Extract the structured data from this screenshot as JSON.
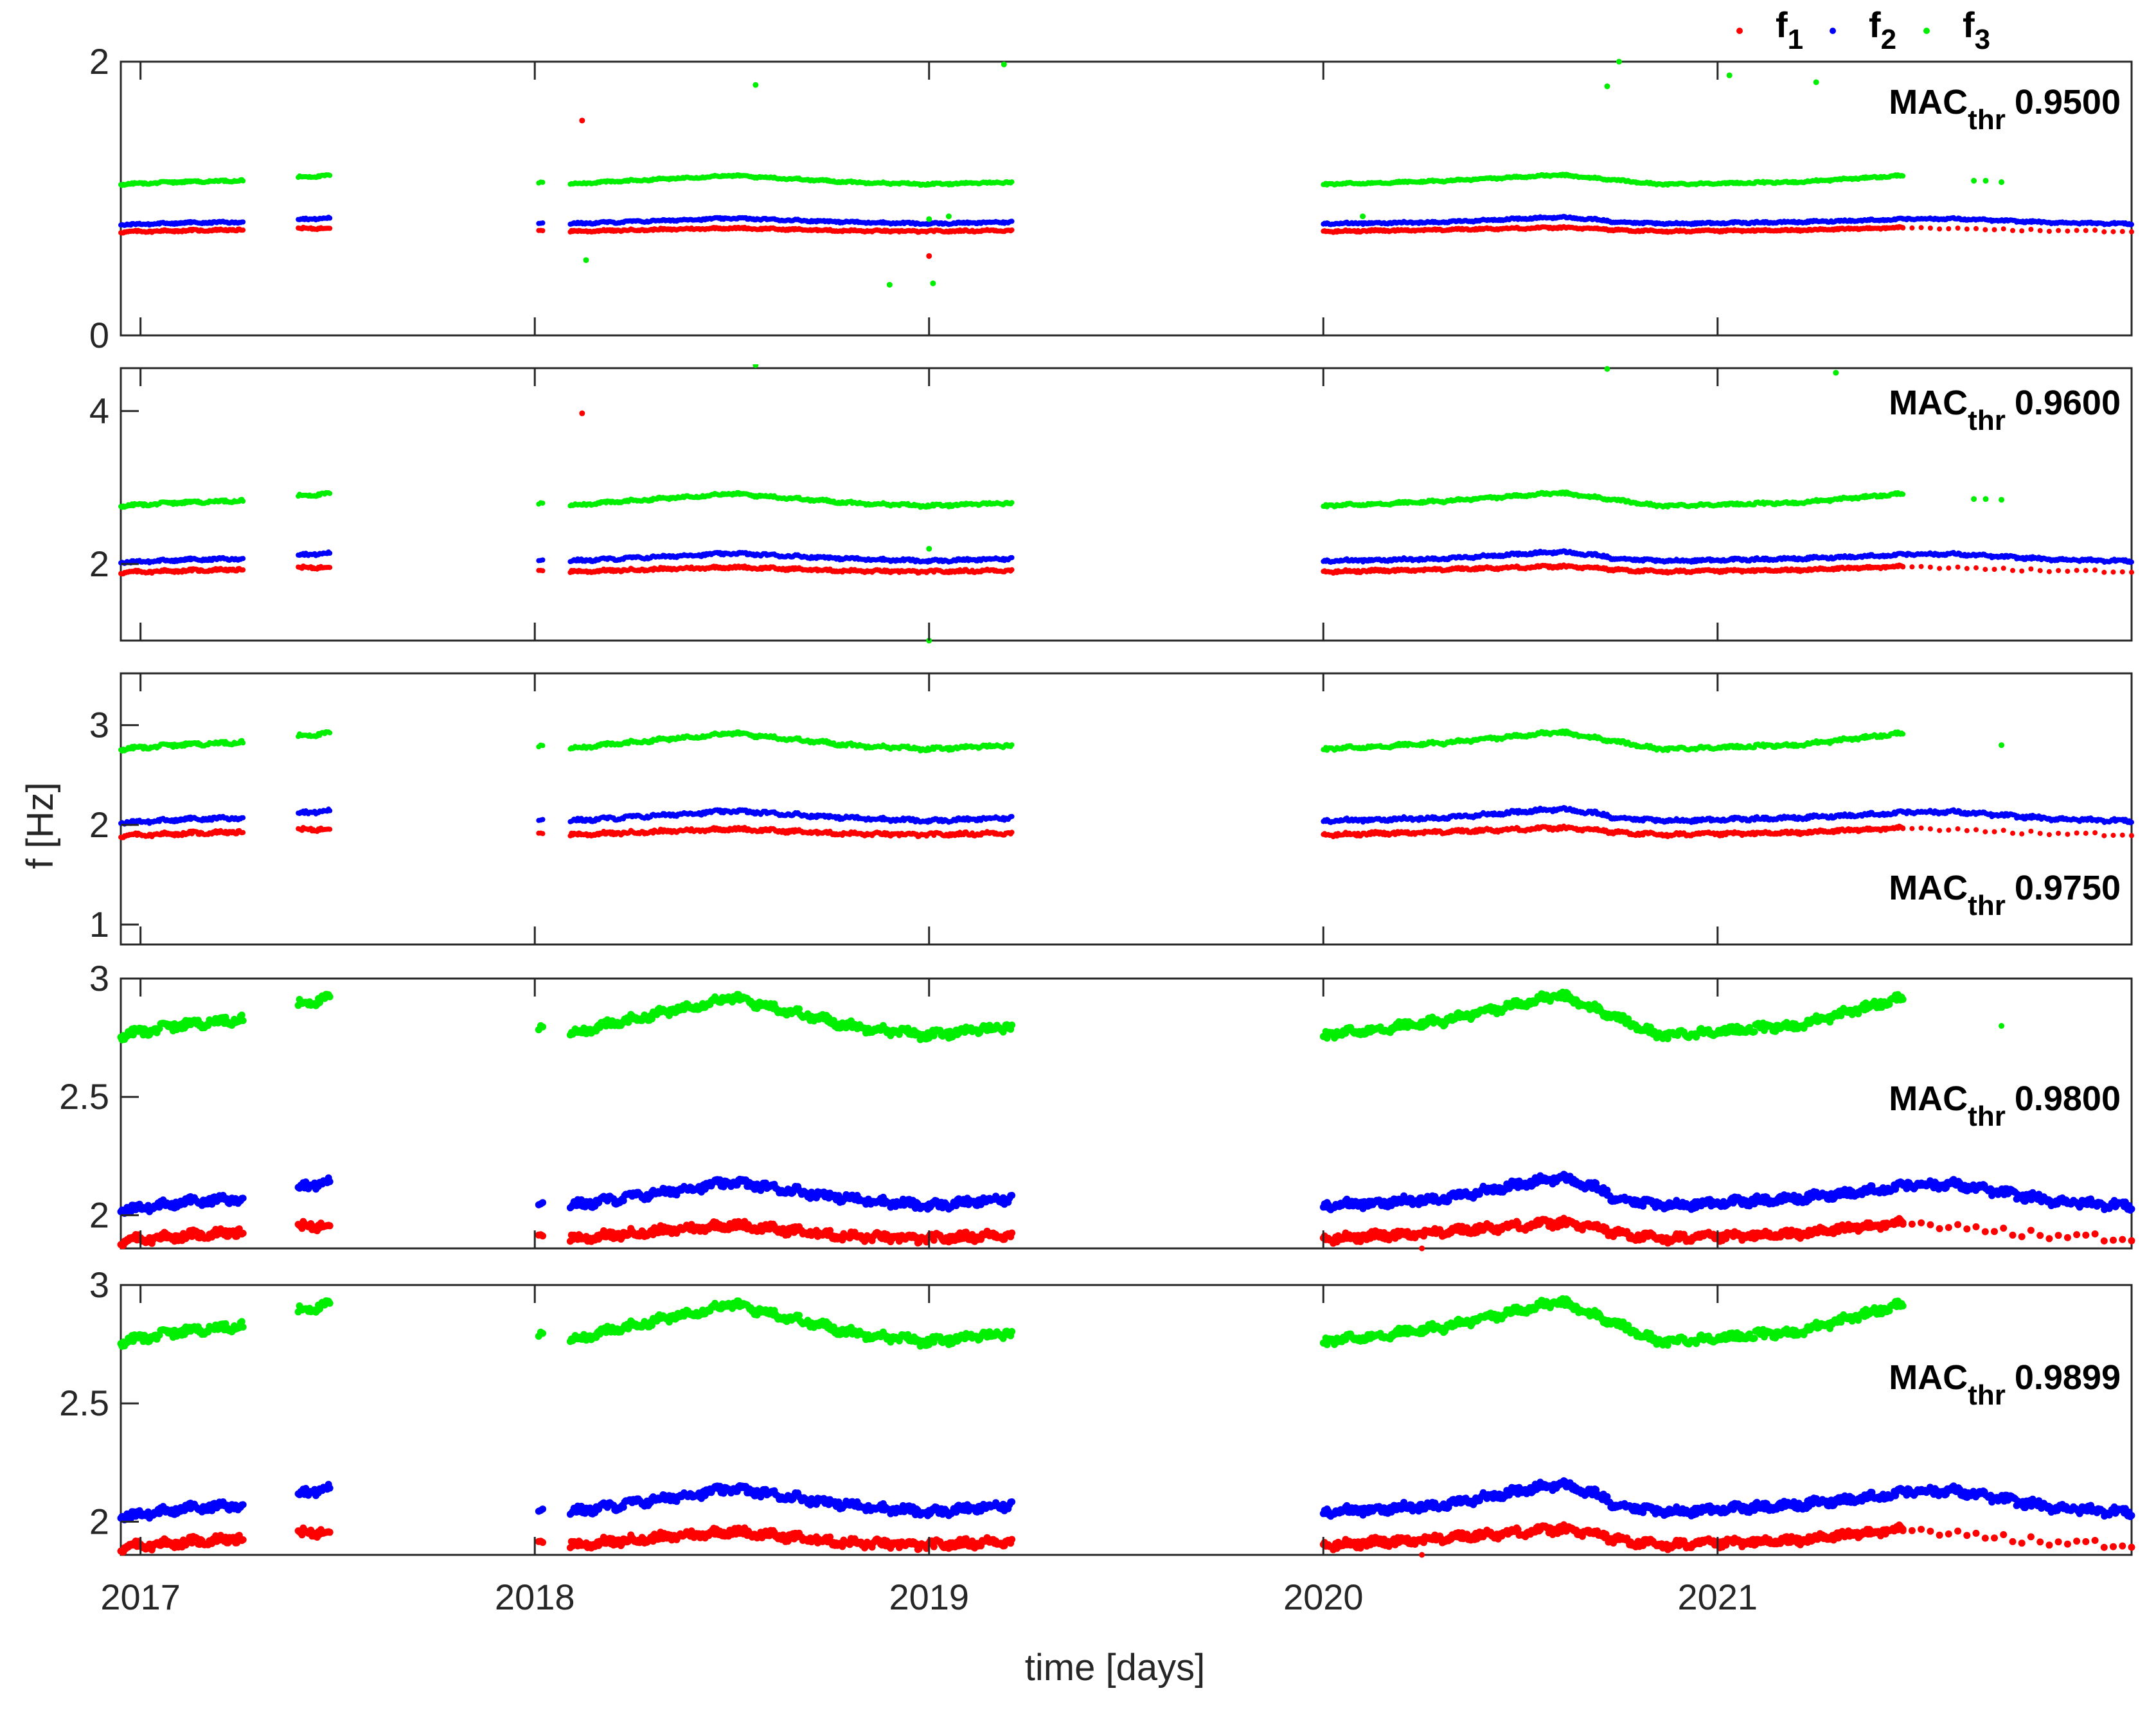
{
  "chart_data": {
    "type": "scatter",
    "xlabel": "time [days]",
    "ylabel": "f [Hz]",
    "xlim": [
      2016.95,
      2022.05
    ],
    "xticks": [
      2017,
      2018,
      2019,
      2020,
      2021
    ],
    "xtick_labels": [
      "2017",
      "2018",
      "2019",
      "2020",
      "2021"
    ],
    "legend": {
      "placement": "top-right",
      "entries": [
        {
          "base": "f",
          "sub": "1",
          "color": "#ff0000"
        },
        {
          "base": "f",
          "sub": "2",
          "color": "#0000ff"
        },
        {
          "base": "f",
          "sub": "3",
          "color": "#00ee00"
        }
      ]
    },
    "series_colors": {
      "f1": "#ff0000",
      "f2": "#0000ff",
      "f3": "#00ee00"
    },
    "segments": [
      {
        "x": [
          2016.95,
          2017.13
        ],
        "f1": [
          [
            2016.95,
            1.89
          ],
          [
            2017.13,
            1.92
          ]
        ],
        "f2": [
          [
            2016.95,
            2.02
          ],
          [
            2017.13,
            2.06
          ]
        ],
        "f3": [
          [
            2016.95,
            2.76
          ],
          [
            2017.13,
            2.81
          ]
        ]
      },
      {
        "x": [
          2017.08,
          2017.26
        ],
        "f1": [
          [
            2017.08,
            1.91
          ],
          [
            2017.26,
            1.93
          ]
        ],
        "f2": [
          [
            2017.08,
            2.05
          ],
          [
            2017.26,
            2.07
          ]
        ],
        "f3": [
          [
            2017.08,
            2.8
          ],
          [
            2017.26,
            2.83
          ]
        ]
      },
      {
        "x": [
          2017.4,
          2017.48
        ],
        "f1": [
          [
            2017.4,
            1.95
          ],
          [
            2017.48,
            1.96
          ]
        ],
        "f2": [
          [
            2017.4,
            2.12
          ],
          [
            2017.48,
            2.14
          ]
        ],
        "f3": [
          [
            2017.4,
            2.89
          ],
          [
            2017.48,
            2.92
          ]
        ]
      },
      {
        "x": [
          2018.01,
          2018.02
        ],
        "f1": [
          [
            2018.01,
            1.91
          ]
        ],
        "f2": [
          [
            2018.01,
            2.06
          ]
        ],
        "f3": [
          [
            2018.01,
            2.8
          ]
        ]
      },
      {
        "x": [
          2018.09,
          2019.21
        ],
        "f1": [
          [
            2018.09,
            1.9
          ],
          [
            2018.5,
            1.96
          ],
          [
            2018.8,
            1.91
          ],
          [
            2019.0,
            1.9
          ],
          [
            2019.21,
            1.92
          ]
        ],
        "f2": [
          [
            2018.09,
            2.04
          ],
          [
            2018.5,
            2.14
          ],
          [
            2018.8,
            2.07
          ],
          [
            2019.0,
            2.04
          ],
          [
            2019.21,
            2.07
          ]
        ],
        "f3": [
          [
            2018.09,
            2.77
          ],
          [
            2018.5,
            2.92
          ],
          [
            2018.8,
            2.8
          ],
          [
            2019.0,
            2.76
          ],
          [
            2019.21,
            2.8
          ]
        ]
      },
      {
        "x": [
          2020.0,
          2020.72
        ],
        "f1": [
          [
            2020.0,
            1.9
          ],
          [
            2020.3,
            1.93
          ],
          [
            2020.6,
            1.97
          ],
          [
            2020.72,
            1.94
          ]
        ],
        "f2": [
          [
            2020.0,
            2.04
          ],
          [
            2020.3,
            2.07
          ],
          [
            2020.6,
            2.16
          ],
          [
            2020.72,
            2.1
          ]
        ],
        "f3": [
          [
            2020.0,
            2.76
          ],
          [
            2020.3,
            2.82
          ],
          [
            2020.6,
            2.93
          ],
          [
            2020.72,
            2.85
          ]
        ]
      },
      {
        "x": [
          2020.72,
          2021.47
        ],
        "f1": [
          [
            2020.72,
            1.93
          ],
          [
            2020.85,
            1.9
          ],
          [
            2021.2,
            1.92
          ],
          [
            2021.47,
            1.97
          ]
        ],
        "f2": [
          [
            2020.72,
            2.08
          ],
          [
            2020.85,
            2.04
          ],
          [
            2021.2,
            2.07
          ],
          [
            2021.47,
            2.12
          ]
        ],
        "f3": [
          [
            2020.72,
            2.85
          ],
          [
            2020.85,
            2.76
          ],
          [
            2021.2,
            2.8
          ],
          [
            2021.47,
            2.92
          ]
        ]
      },
      {
        "x": [
          2021.47,
          2022.05
        ],
        "sparse_f1": true,
        "f1": [
          [
            2021.47,
            1.96
          ],
          [
            2021.7,
            1.93
          ],
          [
            2022.05,
            1.9
          ]
        ],
        "f2": [
          [
            2021.47,
            2.13
          ],
          [
            2021.6,
            2.13
          ],
          [
            2021.85,
            2.06
          ],
          [
            2022.05,
            2.04
          ]
        ]
      }
    ],
    "panels": [
      {
        "label": "MAC",
        "sub": "thr",
        "threshold": "0.9500",
        "ylim": [
          0,
          2.0
        ],
        "yticks": [
          0,
          2
        ],
        "ytick_labels": [
          "0",
          "2"
        ],
        "scale": 0.4,
        "outliers": [
          {
            "s": "f1",
            "x": 2018.12,
            "y": 1.57
          },
          {
            "s": "f3",
            "x": 2018.13,
            "y": 0.55
          },
          {
            "s": "f3",
            "x": 2018.56,
            "y": 1.83
          },
          {
            "s": "f3",
            "x": 2019.19,
            "y": 1.98
          },
          {
            "s": "f1",
            "x": 2019.0,
            "y": 0.58
          },
          {
            "s": "f3",
            "x": 2018.9,
            "y": 0.37
          },
          {
            "s": "f3",
            "x": 2019.01,
            "y": 0.38
          },
          {
            "s": "f3",
            "x": 2019.0,
            "y": 0.85
          },
          {
            "s": "f3",
            "x": 2019.05,
            "y": 0.87
          },
          {
            "s": "f3",
            "x": 2020.1,
            "y": 0.87
          },
          {
            "s": "f3",
            "x": 2020.72,
            "y": 1.82
          },
          {
            "s": "f3",
            "x": 2020.75,
            "y": 2.0
          },
          {
            "s": "f3",
            "x": 2021.03,
            "y": 1.9
          },
          {
            "s": "f3",
            "x": 2021.25,
            "y": 1.85
          },
          {
            "s": "f3",
            "x": 2021.65,
            "y": 1.13
          },
          {
            "s": "f3",
            "x": 2021.68,
            "y": 1.13
          },
          {
            "s": "f3",
            "x": 2021.72,
            "y": 1.12
          }
        ]
      },
      {
        "label": "MAC",
        "sub": "thr",
        "threshold": "0.9600",
        "ylim": [
          1.0,
          4.56
        ],
        "yticks": [
          2,
          4
        ],
        "ytick_labels": [
          "2",
          "4"
        ],
        "scale": 1,
        "outliers": [
          {
            "s": "f1",
            "x": 2018.12,
            "y": 3.97
          },
          {
            "s": "f3",
            "x": 2018.56,
            "y": 4.6
          },
          {
            "s": "f3",
            "x": 2020.72,
            "y": 4.55
          },
          {
            "s": "f3",
            "x": 2021.3,
            "y": 4.5
          },
          {
            "s": "f3",
            "x": 2019.0,
            "y": 2.2
          },
          {
            "s": "f3",
            "x": 2019.0,
            "y": 1.0
          },
          {
            "s": "f3",
            "x": 2021.65,
            "y": 2.85
          },
          {
            "s": "f3",
            "x": 2021.68,
            "y": 2.85
          },
          {
            "s": "f3",
            "x": 2021.72,
            "y": 2.84
          }
        ]
      },
      {
        "label": "MAC",
        "sub": "thr",
        "threshold": "0.9750",
        "ylim": [
          0.8,
          3.52
        ],
        "yticks": [
          1,
          2,
          3
        ],
        "ytick_labels": [
          "1",
          "2",
          "3"
        ],
        "scale": 1,
        "outliers": [
          {
            "s": "f3",
            "x": 2021.72,
            "y": 2.8
          }
        ]
      },
      {
        "label": "MAC",
        "sub": "thr",
        "threshold": "0.9800",
        "ylim": [
          1.86,
          3.0
        ],
        "yticks": [
          2,
          2.5,
          3
        ],
        "ytick_labels": [
          "2",
          "2.5",
          "3"
        ],
        "scale": 1,
        "outliers": [
          {
            "s": "f3",
            "x": 2021.72,
            "y": 2.8
          },
          {
            "s": "f1",
            "x": 2020.25,
            "y": 1.86
          }
        ]
      },
      {
        "label": "MAC",
        "sub": "thr",
        "threshold": "0.9899",
        "ylim": [
          1.86,
          3.0
        ],
        "yticks": [
          2,
          2.5,
          3
        ],
        "ytick_labels": [
          "2",
          "2.5",
          "3"
        ],
        "scale": 1,
        "outliers": [
          {
            "s": "f1",
            "x": 2020.25,
            "y": 1.86
          }
        ]
      }
    ]
  }
}
